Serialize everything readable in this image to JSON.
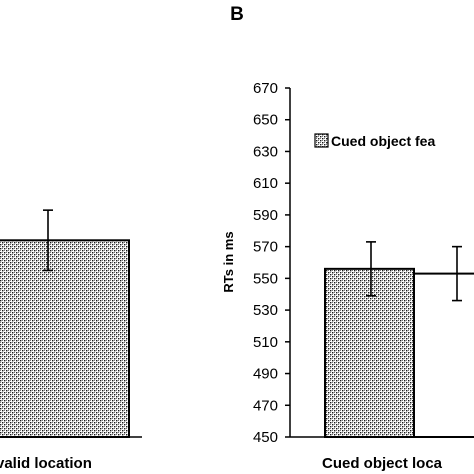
{
  "chart_data": [
    {
      "type": "bar",
      "categories": [
        "valid location"
      ],
      "series": [
        {
          "values": [
            574
          ],
          "error": [
            19
          ]
        }
      ]
    },
    {
      "type": "bar",
      "panel_label": "B",
      "ylabel": "RTs in ms",
      "ylim": [
        450,
        670
      ],
      "yticks": [
        450,
        470,
        490,
        510,
        530,
        550,
        570,
        590,
        610,
        630,
        650,
        670
      ],
      "categories": [
        "Cued object loca"
      ],
      "series": [
        {
          "name": "Cued object fea",
          "values": [
            556
          ],
          "error": [
            17
          ]
        },
        {
          "values": [
            553
          ],
          "error": [
            17
          ]
        }
      ],
      "legend_position": "top-right"
    }
  ]
}
